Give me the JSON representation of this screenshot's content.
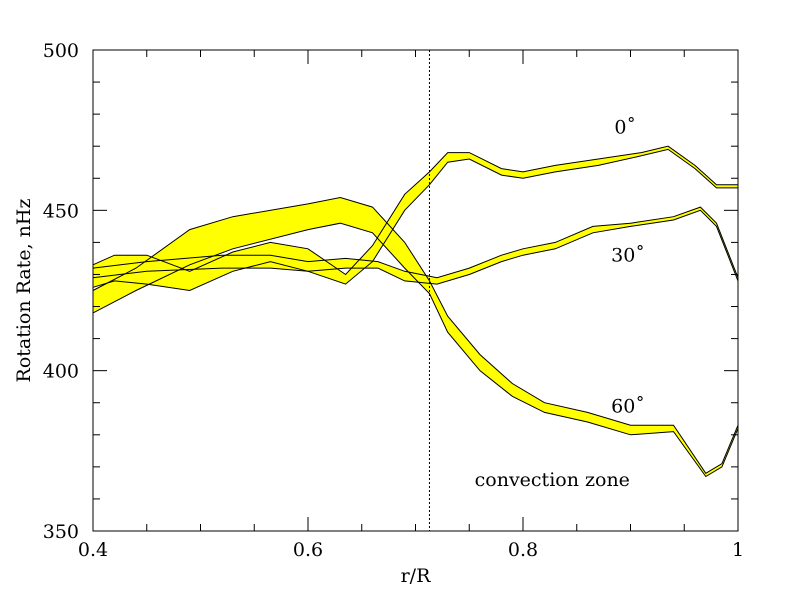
{
  "chart_data": {
    "type": "line",
    "title": "",
    "xlabel": "r/R",
    "ylabel": "Rotation Rate, nHz",
    "xlim": [
      0.4,
      1.0
    ],
    "ylim": [
      350,
      500
    ],
    "xticks": [
      0.4,
      0.6,
      0.8,
      1.0
    ],
    "xtick_labels": [
      "0.4",
      "0.6",
      "0.8",
      "1"
    ],
    "yticks": [
      350,
      400,
      450,
      500
    ],
    "ytick_labels": [
      "350",
      "400",
      "450",
      "500"
    ],
    "grid": false,
    "legend": "none",
    "band_color": "#ffff00",
    "line_color": "#000000",
    "vline": {
      "x": 0.713,
      "style": "dotted"
    },
    "annotations": [
      {
        "text": "0˚",
        "x": 0.885,
        "y": 474
      },
      {
        "text": "30˚",
        "x": 0.882,
        "y": 434
      },
      {
        "text": "60˚",
        "x": 0.882,
        "y": 387
      },
      {
        "text": "convection zone",
        "x": 0.755,
        "y": 364
      }
    ],
    "series": [
      {
        "points": [
          {
            "x": 0.4,
            "lo": 418,
            "hi": 425
          },
          {
            "x": 0.44,
            "lo": 425,
            "hi": 432
          },
          {
            "x": 0.49,
            "lo": 433,
            "hi": 444
          },
          {
            "x": 0.53,
            "lo": 438,
            "hi": 448
          },
          {
            "x": 0.6,
            "lo": 444,
            "hi": 452
          },
          {
            "x": 0.63,
            "lo": 446,
            "hi": 454
          },
          {
            "x": 0.66,
            "lo": 443,
            "hi": 451
          },
          {
            "x": 0.69,
            "lo": 432,
            "hi": 440
          },
          {
            "x": 0.713,
            "lo": 424,
            "hi": 428
          },
          {
            "x": 0.73,
            "lo": 412,
            "hi": 417
          },
          {
            "x": 0.76,
            "lo": 400,
            "hi": 405
          },
          {
            "x": 0.79,
            "lo": 392,
            "hi": 396
          },
          {
            "x": 0.82,
            "lo": 387,
            "hi": 390
          },
          {
            "x": 0.86,
            "lo": 384,
            "hi": 387
          },
          {
            "x": 0.9,
            "lo": 380,
            "hi": 383
          },
          {
            "x": 0.94,
            "lo": 381,
            "hi": 383
          },
          {
            "x": 0.97,
            "lo": 367,
            "hi": 368
          },
          {
            "x": 0.985,
            "lo": 370,
            "hi": 371
          },
          {
            "x": 1.0,
            "lo": 382,
            "hi": 383
          }
        ]
      },
      {
        "points": [
          {
            "x": 0.4,
            "lo": 426,
            "hi": 433
          },
          {
            "x": 0.42,
            "lo": 428,
            "hi": 436
          },
          {
            "x": 0.45,
            "lo": 427,
            "hi": 436
          },
          {
            "x": 0.49,
            "lo": 425,
            "hi": 431
          },
          {
            "x": 0.53,
            "lo": 431,
            "hi": 437
          },
          {
            "x": 0.565,
            "lo": 434,
            "hi": 440
          },
          {
            "x": 0.6,
            "lo": 431,
            "hi": 438
          },
          {
            "x": 0.635,
            "lo": 427,
            "hi": 430
          },
          {
            "x": 0.66,
            "lo": 434,
            "hi": 439
          },
          {
            "x": 0.69,
            "lo": 450,
            "hi": 455
          },
          {
            "x": 0.713,
            "lo": 458,
            "hi": 462
          },
          {
            "x": 0.73,
            "lo": 465,
            "hi": 468
          },
          {
            "x": 0.75,
            "lo": 466,
            "hi": 468
          },
          {
            "x": 0.78,
            "lo": 461,
            "hi": 463
          },
          {
            "x": 0.8,
            "lo": 460,
            "hi": 462
          },
          {
            "x": 0.83,
            "lo": 462,
            "hi": 464
          },
          {
            "x": 0.87,
            "lo": 464,
            "hi": 466
          },
          {
            "x": 0.91,
            "lo": 467,
            "hi": 468
          },
          {
            "x": 0.935,
            "lo": 469,
            "hi": 470
          },
          {
            "x": 0.96,
            "lo": 463,
            "hi": 464
          },
          {
            "x": 0.98,
            "lo": 457,
            "hi": 458
          },
          {
            "x": 1.0,
            "lo": 457,
            "hi": 458
          }
        ]
      },
      {
        "points": [
          {
            "x": 0.4,
            "lo": 429,
            "hi": 432
          },
          {
            "x": 0.45,
            "lo": 431,
            "hi": 434
          },
          {
            "x": 0.52,
            "lo": 432,
            "hi": 436
          },
          {
            "x": 0.565,
            "lo": 432,
            "hi": 436
          },
          {
            "x": 0.6,
            "lo": 431,
            "hi": 434
          },
          {
            "x": 0.635,
            "lo": 432,
            "hi": 435
          },
          {
            "x": 0.665,
            "lo": 432,
            "hi": 434
          },
          {
            "x": 0.69,
            "lo": 428,
            "hi": 431
          },
          {
            "x": 0.72,
            "lo": 427,
            "hi": 429
          },
          {
            "x": 0.75,
            "lo": 430,
            "hi": 432
          },
          {
            "x": 0.78,
            "lo": 434,
            "hi": 436
          },
          {
            "x": 0.8,
            "lo": 436,
            "hi": 438
          },
          {
            "x": 0.83,
            "lo": 438,
            "hi": 440
          },
          {
            "x": 0.865,
            "lo": 443,
            "hi": 445
          },
          {
            "x": 0.9,
            "lo": 445,
            "hi": 446
          },
          {
            "x": 0.94,
            "lo": 447,
            "hi": 448
          },
          {
            "x": 0.965,
            "lo": 450,
            "hi": 451
          },
          {
            "x": 0.98,
            "lo": 445,
            "hi": 446
          },
          {
            "x": 1.0,
            "lo": 428,
            "hi": 429
          }
        ]
      }
    ]
  }
}
